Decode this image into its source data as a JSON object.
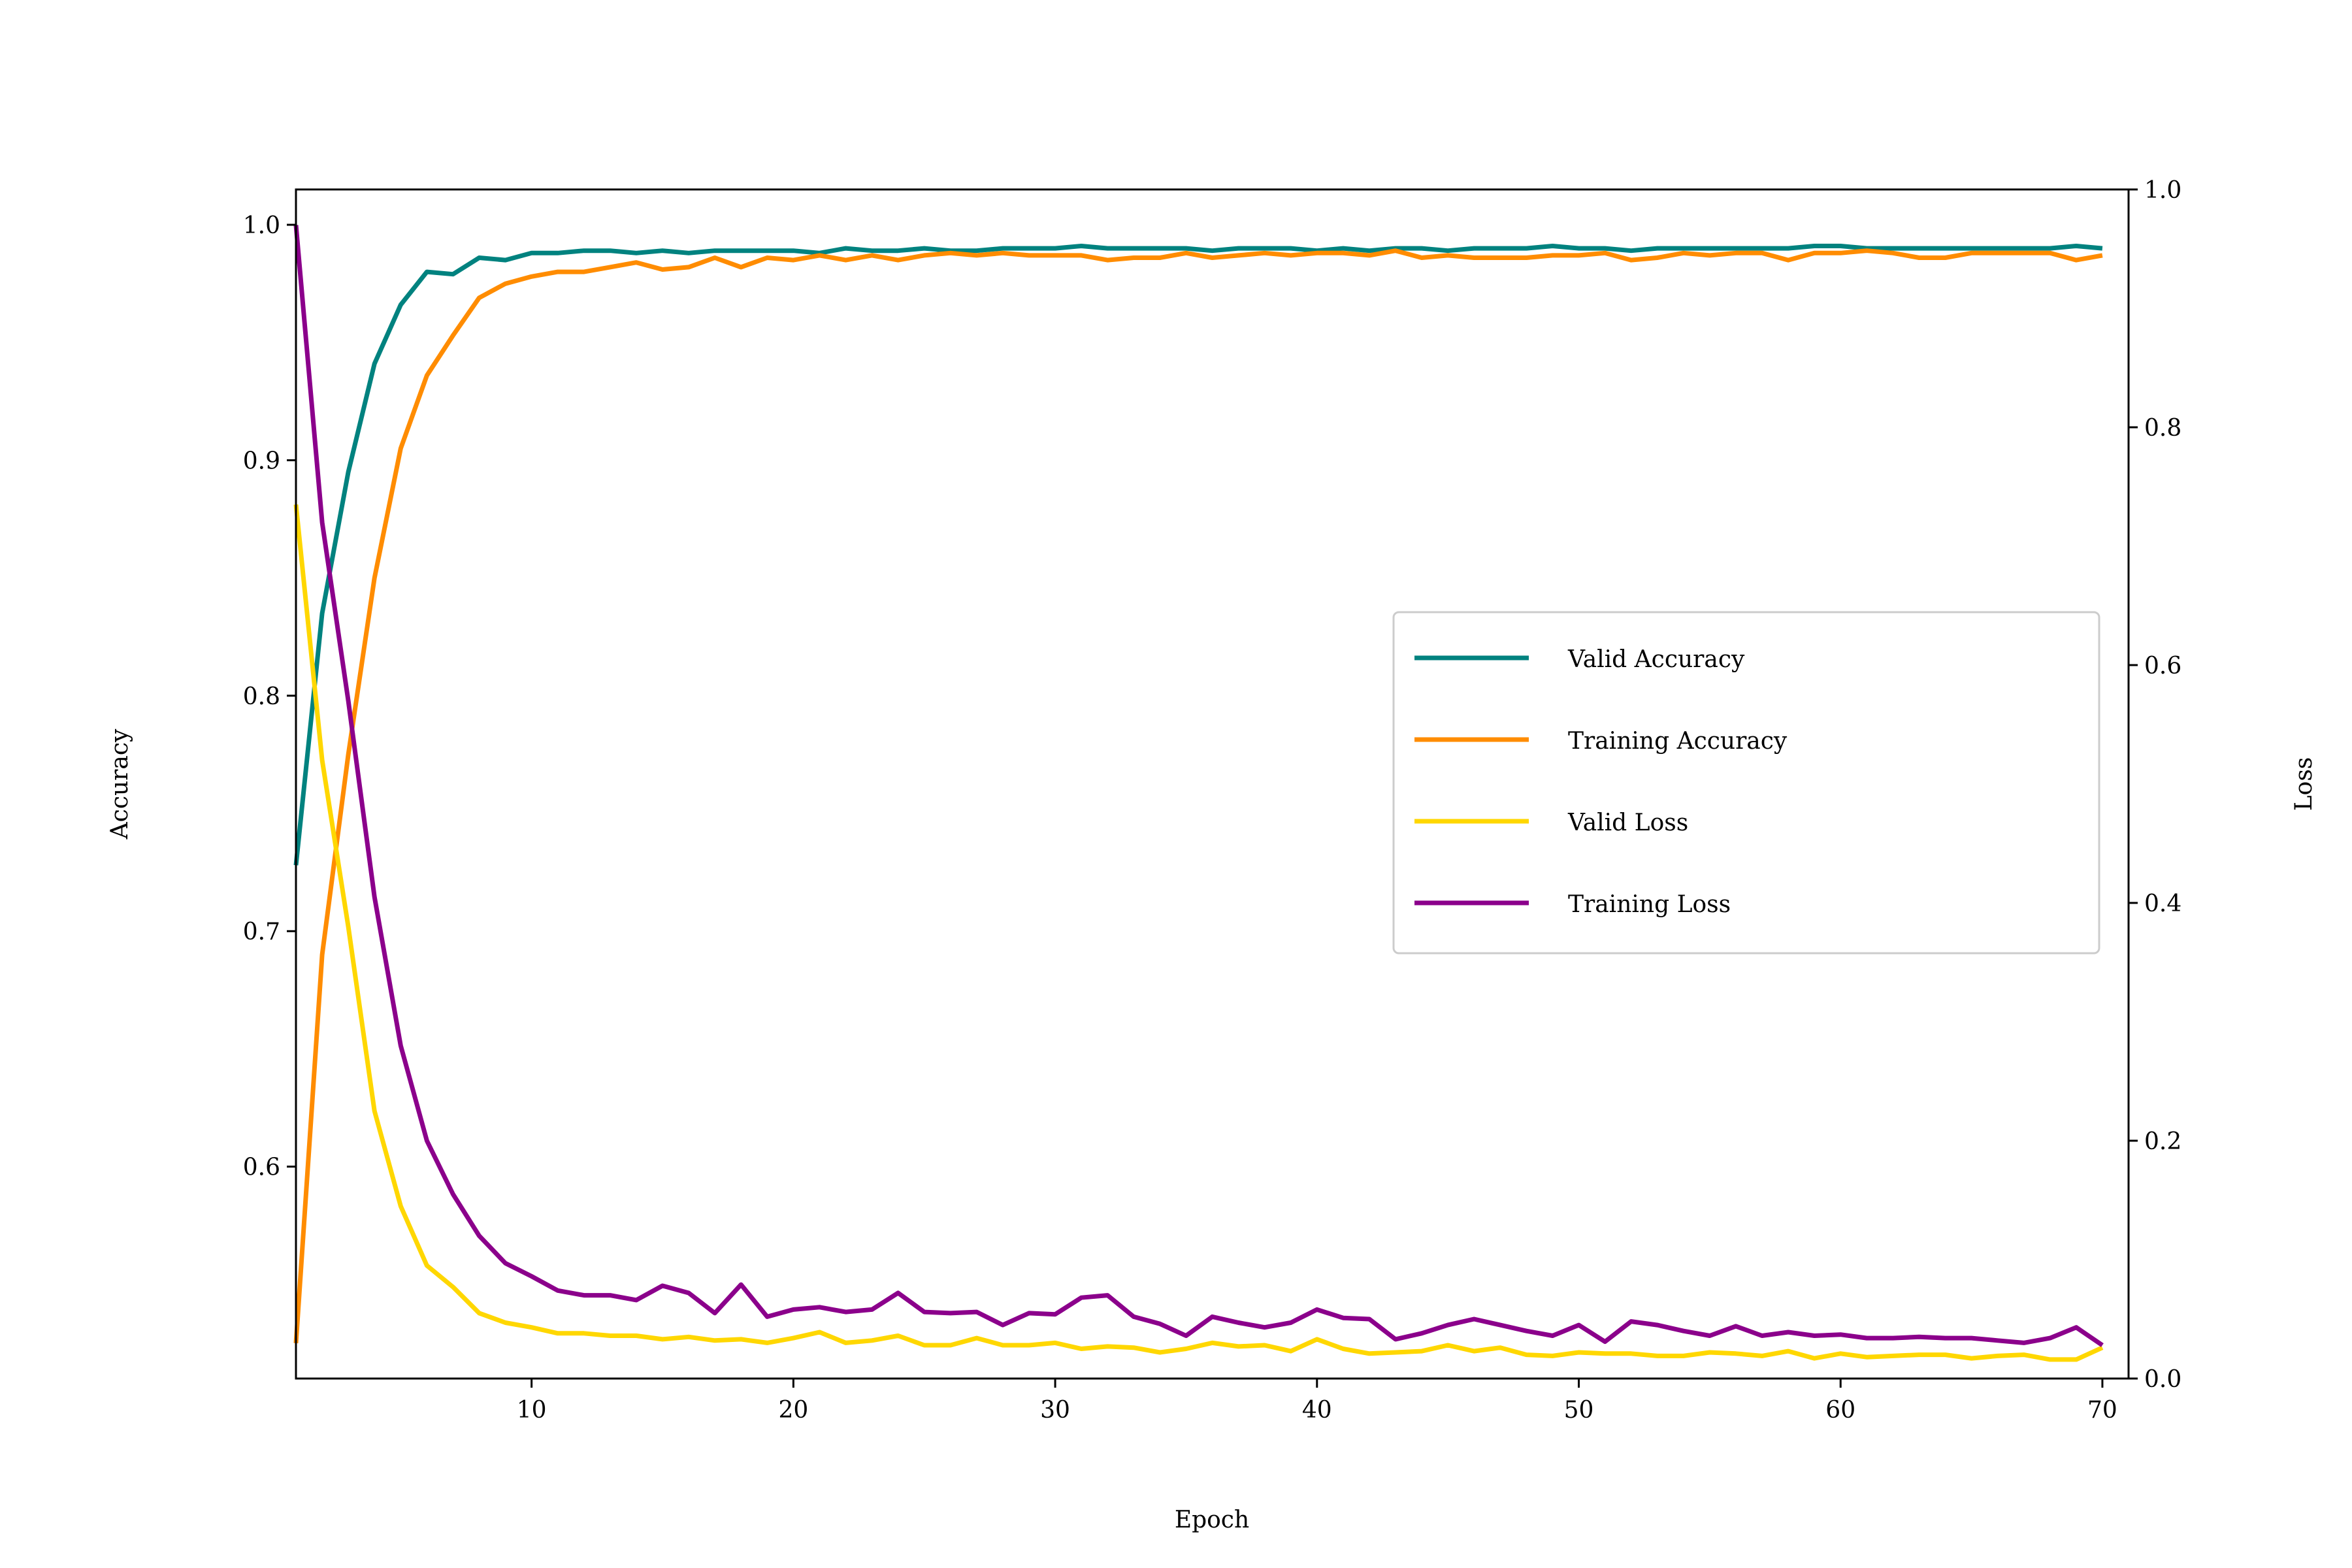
{
  "chart_data": {
    "type": "line",
    "title": "",
    "xlabel": "Epoch",
    "ylabel_left": "Accuracy",
    "ylabel_right": "Loss",
    "xlim": [
      1,
      71
    ],
    "ylim_left": [
      0.51,
      1.015
    ],
    "ylim_right": [
      0.0,
      1.0
    ],
    "xticks": [
      10,
      20,
      30,
      40,
      50,
      60,
      70
    ],
    "yticks_left": [
      0.6,
      0.7,
      0.8,
      0.9,
      1.0
    ],
    "yticks_right": [
      0.0,
      0.2,
      0.4,
      0.6,
      0.8,
      1.0
    ],
    "xtick_labels": [
      "10",
      "20",
      "30",
      "40",
      "50",
      "60",
      "70"
    ],
    "ytick_labels_left": [
      "0.6",
      "0.7",
      "0.8",
      "0.9",
      "1.0"
    ],
    "ytick_labels_right": [
      "0.0",
      "0.2",
      "0.4",
      "0.6",
      "0.8",
      "1.0"
    ],
    "legend_position": "center-right",
    "grid": false,
    "x": [
      1,
      2,
      3,
      4,
      5,
      6,
      7,
      8,
      9,
      10,
      11,
      12,
      13,
      14,
      15,
      16,
      17,
      18,
      19,
      20,
      21,
      22,
      23,
      24,
      25,
      26,
      27,
      28,
      29,
      30,
      31,
      32,
      33,
      34,
      35,
      36,
      37,
      38,
      39,
      40,
      41,
      42,
      43,
      44,
      45,
      46,
      47,
      48,
      49,
      50,
      51,
      52,
      53,
      54,
      55,
      56,
      57,
      58,
      59,
      60,
      61,
      62,
      63,
      64,
      65,
      66,
      67,
      68,
      69,
      70
    ],
    "series": [
      {
        "name": "Valid Accuracy",
        "axis": "left",
        "color": "#00827f",
        "values": [
          0.728,
          0.835,
          0.895,
          0.941,
          0.966,
          0.98,
          0.979,
          0.986,
          0.985,
          0.988,
          0.988,
          0.989,
          0.989,
          0.988,
          0.989,
          0.988,
          0.989,
          0.989,
          0.989,
          0.989,
          0.988,
          0.99,
          0.989,
          0.989,
          0.99,
          0.989,
          0.989,
          0.99,
          0.99,
          0.99,
          0.991,
          0.99,
          0.99,
          0.99,
          0.99,
          0.989,
          0.99,
          0.99,
          0.99,
          0.989,
          0.99,
          0.989,
          0.99,
          0.99,
          0.989,
          0.99,
          0.99,
          0.99,
          0.991,
          0.99,
          0.99,
          0.989,
          0.99,
          0.99,
          0.99,
          0.99,
          0.99,
          0.99,
          0.991,
          0.991,
          0.99,
          0.99,
          0.99,
          0.99,
          0.99,
          0.99,
          0.99,
          0.99,
          0.991,
          0.99
        ]
      },
      {
        "name": "Training Accuracy",
        "axis": "left",
        "color": "#ff8c00",
        "values": [
          0.525,
          0.69,
          0.775,
          0.85,
          0.905,
          0.936,
          0.953,
          0.969,
          0.975,
          0.978,
          0.98,
          0.98,
          0.982,
          0.984,
          0.981,
          0.982,
          0.986,
          0.982,
          0.986,
          0.985,
          0.987,
          0.985,
          0.987,
          0.985,
          0.987,
          0.988,
          0.987,
          0.988,
          0.987,
          0.987,
          0.987,
          0.985,
          0.986,
          0.986,
          0.988,
          0.986,
          0.987,
          0.988,
          0.987,
          0.988,
          0.988,
          0.987,
          0.989,
          0.986,
          0.987,
          0.986,
          0.986,
          0.986,
          0.987,
          0.987,
          0.988,
          0.985,
          0.986,
          0.988,
          0.987,
          0.988,
          0.988,
          0.985,
          0.988,
          0.988,
          0.989,
          0.988,
          0.986,
          0.986,
          0.988,
          0.988,
          0.988,
          0.988,
          0.985,
          0.987
        ]
      },
      {
        "name": "Valid Loss",
        "axis": "right",
        "color": "#ffd700",
        "values": [
          0.735,
          0.52,
          0.38,
          0.225,
          0.145,
          0.095,
          0.077,
          0.055,
          0.047,
          0.043,
          0.038,
          0.038,
          0.036,
          0.036,
          0.033,
          0.035,
          0.032,
          0.033,
          0.03,
          0.034,
          0.039,
          0.03,
          0.032,
          0.036,
          0.028,
          0.028,
          0.034,
          0.028,
          0.028,
          0.03,
          0.025,
          0.027,
          0.026,
          0.022,
          0.025,
          0.03,
          0.027,
          0.028,
          0.023,
          0.033,
          0.025,
          0.021,
          0.022,
          0.023,
          0.028,
          0.023,
          0.026,
          0.02,
          0.019,
          0.022,
          0.021,
          0.021,
          0.019,
          0.019,
          0.022,
          0.021,
          0.019,
          0.023,
          0.017,
          0.021,
          0.018,
          0.019,
          0.02,
          0.02,
          0.017,
          0.019,
          0.02,
          0.016,
          0.016,
          0.026
        ]
      },
      {
        "name": "Training Loss",
        "axis": "right",
        "color": "#8b008b",
        "values": [
          0.97,
          0.72,
          0.57,
          0.405,
          0.28,
          0.2,
          0.155,
          0.12,
          0.097,
          0.086,
          0.074,
          0.07,
          0.07,
          0.066,
          0.078,
          0.072,
          0.055,
          0.079,
          0.052,
          0.058,
          0.06,
          0.056,
          0.058,
          0.072,
          0.056,
          0.055,
          0.056,
          0.045,
          0.055,
          0.054,
          0.068,
          0.07,
          0.052,
          0.046,
          0.036,
          0.052,
          0.047,
          0.043,
          0.047,
          0.058,
          0.051,
          0.05,
          0.033,
          0.038,
          0.045,
          0.05,
          0.045,
          0.04,
          0.036,
          0.045,
          0.031,
          0.048,
          0.045,
          0.04,
          0.036,
          0.044,
          0.036,
          0.039,
          0.036,
          0.037,
          0.034,
          0.034,
          0.035,
          0.034,
          0.034,
          0.032,
          0.03,
          0.034,
          0.043,
          0.028
        ]
      }
    ]
  }
}
